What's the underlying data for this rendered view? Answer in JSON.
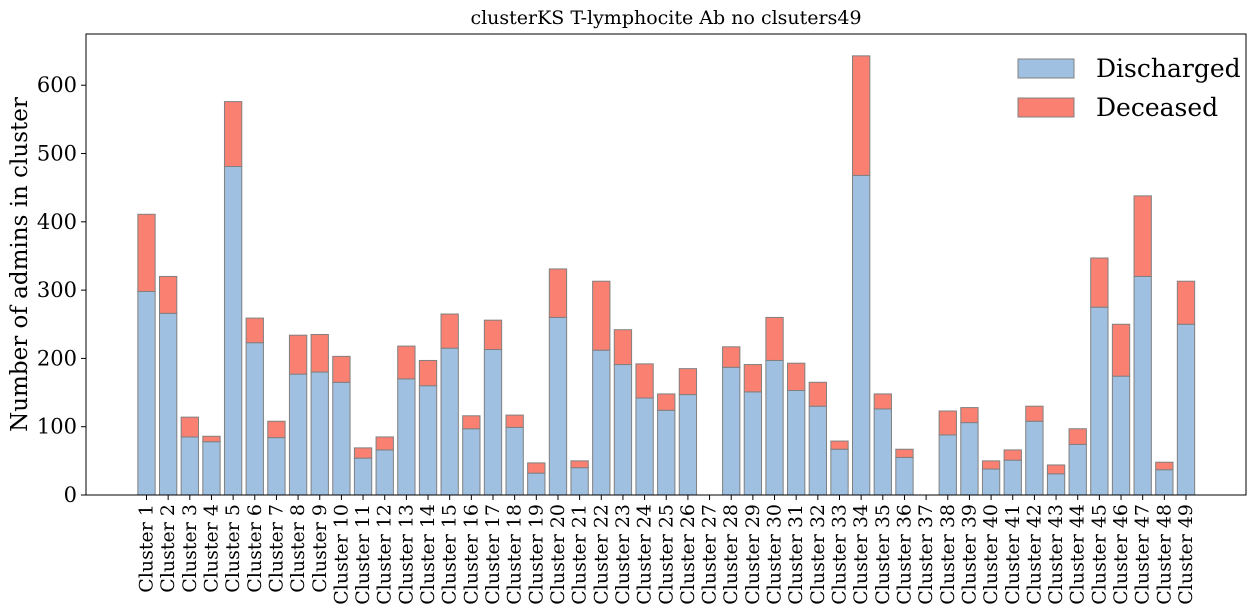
{
  "chart_data": {
    "type": "bar",
    "stacked": true,
    "title": "clusterKS T-lymphocite Ab no clsuters49",
    "xlabel": "",
    "ylabel": "Number of admins in cluster",
    "ylim": [
      0,
      675
    ],
    "yticks": [
      0,
      100,
      200,
      300,
      400,
      500,
      600
    ],
    "grid": false,
    "legend_position": "top-right",
    "categories": [
      "Cluster 1",
      "Cluster 2",
      "Cluster 3",
      "Cluster 4",
      "Cluster 5",
      "Cluster 6",
      "Cluster 7",
      "Cluster 8",
      "Cluster 9",
      "Cluster 10",
      "Cluster 11",
      "Cluster 12",
      "Cluster 13",
      "Cluster 14",
      "Cluster 15",
      "Cluster 16",
      "Cluster 17",
      "Cluster 18",
      "Cluster 19",
      "Cluster 20",
      "Cluster 21",
      "Cluster 22",
      "Cluster 23",
      "Cluster 24",
      "Cluster 25",
      "Cluster 26",
      "Cluster 27",
      "Cluster 28",
      "Cluster 29",
      "Cluster 30",
      "Cluster 31",
      "Cluster 32",
      "Cluster 33",
      "Cluster 34",
      "Cluster 35",
      "Cluster 36",
      "Cluster 37",
      "Cluster 38",
      "Cluster 39",
      "Cluster 40",
      "Cluster 41",
      "Cluster 42",
      "Cluster 43",
      "Cluster 44",
      "Cluster 45",
      "Cluster 46",
      "Cluster 47",
      "Cluster 48",
      "Cluster 49"
    ],
    "series": [
      {
        "name": "Discharged",
        "color": "#9fc0e0",
        "values": [
          298,
          266,
          85,
          78,
          481,
          223,
          84,
          177,
          180,
          165,
          54,
          66,
          170,
          160,
          215,
          97,
          213,
          99,
          32,
          260,
          40,
          212,
          191,
          142,
          124,
          147,
          0,
          187,
          151,
          197,
          153,
          130,
          67,
          468,
          126,
          55,
          0,
          88,
          106,
          38,
          51,
          108,
          31,
          74,
          275,
          174,
          320,
          37,
          250
        ]
      },
      {
        "name": "Deceased",
        "color": "#fa8072",
        "values": [
          113,
          54,
          29,
          8,
          95,
          36,
          24,
          57,
          55,
          38,
          15,
          19,
          48,
          37,
          50,
          19,
          43,
          18,
          15,
          71,
          10,
          101,
          51,
          50,
          24,
          38,
          0,
          30,
          40,
          63,
          40,
          35,
          12,
          175,
          22,
          12,
          0,
          35,
          22,
          12,
          15,
          22,
          13,
          23,
          72,
          76,
          118,
          11,
          63
        ]
      }
    ]
  }
}
